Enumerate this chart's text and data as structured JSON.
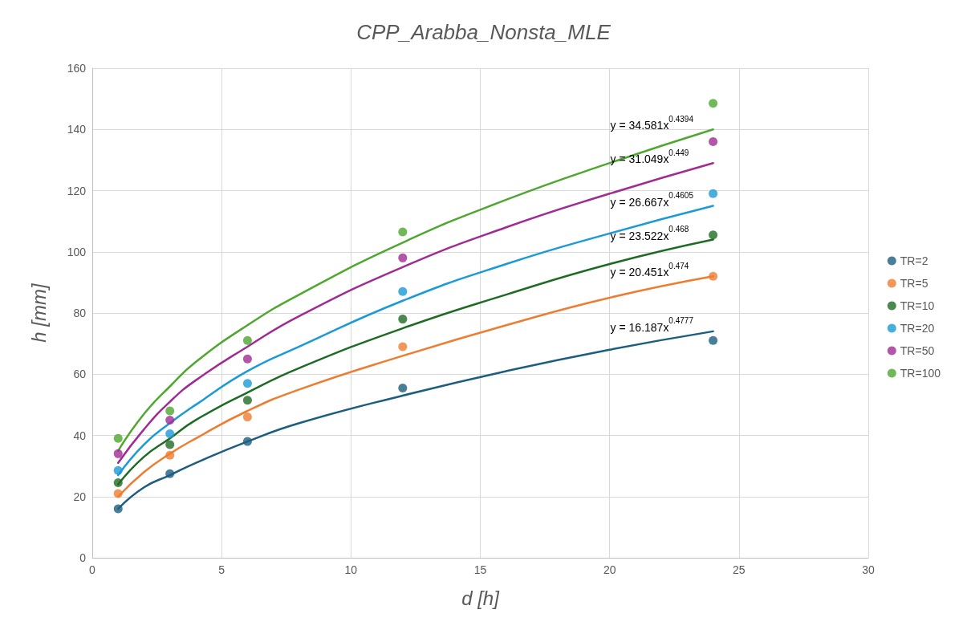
{
  "chart_data": {
    "type": "scatter",
    "title": "CPP_Arabba_Nonsta_MLE",
    "xlabel": "d [h]",
    "ylabel": "h [mm]",
    "x": [
      1,
      3,
      6,
      12,
      24
    ],
    "series": [
      {
        "name": "TR=2",
        "color": "#1b5e80",
        "values": [
          16,
          27.5,
          38,
          55.5,
          71
        ]
      },
      {
        "name": "TR=5",
        "color": "#ed7d31",
        "values": [
          21,
          33.5,
          46,
          69,
          92
        ]
      },
      {
        "name": "TR=10",
        "color": "#1e6b23",
        "values": [
          24.5,
          37,
          51.5,
          78,
          105.5
        ]
      },
      {
        "name": "TR=20",
        "color": "#1a9ad6",
        "values": [
          28.5,
          40.5,
          57,
          87,
          119
        ]
      },
      {
        "name": "TR=50",
        "color": "#a02b93",
        "values": [
          34,
          45,
          65,
          98,
          136
        ]
      },
      {
        "name": "TR=100",
        "color": "#4ea72e",
        "values": [
          39,
          48,
          71,
          106.5,
          148.5
        ]
      },
      {
        "type": "line",
        "marker": "none",
        "color": "#1b5e80",
        "x": [
          1,
          2,
          3,
          4,
          6,
          8,
          12,
          16,
          20,
          24
        ],
        "values": [
          16,
          23,
          27,
          31,
          38,
          44,
          53,
          61,
          68,
          74
        ]
      },
      {
        "type": "line",
        "marker": "none",
        "color": "#ed7d31",
        "x": [
          1,
          2,
          3,
          4,
          6,
          8,
          12,
          16,
          20,
          24
        ],
        "values": [
          20,
          28,
          34,
          39,
          48,
          55,
          66,
          76,
          85,
          92
        ]
      },
      {
        "type": "line",
        "marker": "none",
        "color": "#1e6b23",
        "x": [
          1,
          2,
          3,
          4,
          6,
          8,
          12,
          16,
          20,
          24
        ],
        "values": [
          24,
          33,
          39,
          45,
          54,
          62,
          75,
          86,
          96,
          104
        ]
      },
      {
        "type": "line",
        "marker": "none",
        "color": "#1a9ad6",
        "x": [
          1,
          2,
          3,
          4,
          6,
          8,
          12,
          16,
          20,
          24
        ],
        "values": [
          27,
          37,
          44,
          50,
          61,
          69,
          84,
          96,
          106,
          115
        ]
      },
      {
        "type": "line",
        "marker": "none",
        "color": "#a02b93",
        "x": [
          1,
          2,
          3,
          4,
          6,
          8,
          12,
          16,
          20,
          24
        ],
        "values": [
          31,
          42,
          51,
          58,
          69,
          79,
          95,
          108,
          119,
          129
        ]
      },
      {
        "type": "line",
        "marker": "none",
        "color": "#4ea72e",
        "x": [
          1,
          2,
          3,
          4,
          6,
          8,
          12,
          16,
          20,
          24
        ],
        "values": [
          35,
          47,
          56,
          64,
          76,
          86,
          103,
          117,
          129,
          140
        ]
      }
    ],
    "annotations": [
      "y = 16.187x$^{0.4777}$",
      "y = 20.451x$^{0.474}$",
      "y = 23.522x$^{0.468}$",
      "y = 26.667x$^{0.4605}$",
      "y = 31.049x$^{0.449}$",
      "y = 34.581x$^{0.4394}$"
    ],
    "xlim": [
      0,
      30
    ],
    "xticks": [
      0,
      5,
      10,
      15,
      20,
      25,
      30
    ],
    "ylim": [
      0,
      160
    ],
    "yticks": [
      0,
      20,
      40,
      60,
      80,
      100,
      120,
      140,
      160
    ],
    "grid": true,
    "legend": "right",
    "marker": "circle"
  }
}
